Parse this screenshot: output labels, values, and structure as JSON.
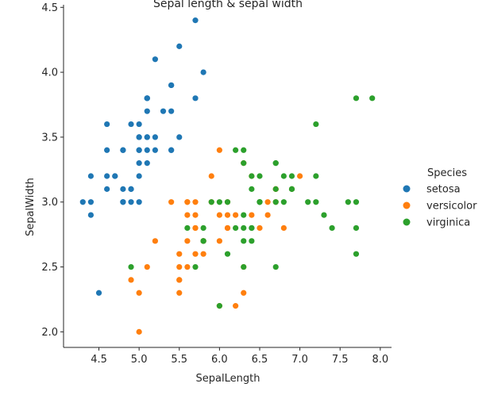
{
  "chart_data": {
    "type": "scatter",
    "title": "Sepal length & sepal width",
    "xlabel": "SepalLength",
    "ylabel": "SepalWidth",
    "xlim": [
      4.06,
      8.14
    ],
    "ylim": [
      1.88,
      4.52
    ],
    "xticks": [
      4.5,
      5.0,
      5.5,
      6.0,
      6.5,
      7.0,
      7.5,
      8.0
    ],
    "xtick_labels": [
      "4.5",
      "5.0",
      "5.5",
      "6.0",
      "6.5",
      "7.0",
      "7.5",
      "8.0"
    ],
    "yticks": [
      2.0,
      2.5,
      3.0,
      3.5,
      4.0,
      4.5
    ],
    "ytick_labels": [
      "2.0",
      "2.5",
      "3.0",
      "3.5",
      "4.0",
      "4.5"
    ],
    "grid": false,
    "legend": {
      "title": "Species",
      "placement": "right"
    },
    "series": [
      {
        "name": "setosa",
        "color": "#1f77b4",
        "points": [
          [
            5.1,
            3.5
          ],
          [
            4.9,
            3.0
          ],
          [
            4.7,
            3.2
          ],
          [
            4.6,
            3.1
          ],
          [
            5.0,
            3.6
          ],
          [
            5.4,
            3.9
          ],
          [
            4.6,
            3.4
          ],
          [
            5.0,
            3.4
          ],
          [
            4.4,
            2.9
          ],
          [
            4.9,
            3.1
          ],
          [
            5.4,
            3.7
          ],
          [
            4.8,
            3.4
          ],
          [
            4.8,
            3.0
          ],
          [
            4.3,
            3.0
          ],
          [
            5.8,
            4.0
          ],
          [
            5.7,
            4.4
          ],
          [
            5.4,
            3.9
          ],
          [
            5.1,
            3.5
          ],
          [
            5.7,
            3.8
          ],
          [
            5.1,
            3.8
          ],
          [
            5.4,
            3.4
          ],
          [
            5.1,
            3.7
          ],
          [
            4.6,
            3.6
          ],
          [
            5.1,
            3.3
          ],
          [
            4.8,
            3.4
          ],
          [
            5.0,
            3.0
          ],
          [
            5.0,
            3.4
          ],
          [
            5.2,
            3.5
          ],
          [
            5.2,
            3.4
          ],
          [
            4.7,
            3.2
          ],
          [
            4.8,
            3.1
          ],
          [
            5.4,
            3.4
          ],
          [
            5.2,
            4.1
          ],
          [
            5.5,
            4.2
          ],
          [
            4.9,
            3.1
          ],
          [
            5.0,
            3.2
          ],
          [
            5.5,
            3.5
          ],
          [
            4.9,
            3.6
          ],
          [
            4.4,
            3.0
          ],
          [
            5.1,
            3.4
          ],
          [
            5.0,
            3.5
          ],
          [
            4.5,
            2.3
          ],
          [
            4.4,
            3.2
          ],
          [
            5.0,
            3.5
          ],
          [
            5.1,
            3.8
          ],
          [
            4.8,
            3.0
          ],
          [
            5.1,
            3.8
          ],
          [
            4.6,
            3.2
          ],
          [
            5.3,
            3.7
          ],
          [
            5.0,
            3.3
          ]
        ]
      },
      {
        "name": "versicolor",
        "color": "#ff7f0e",
        "points": [
          [
            7.0,
            3.2
          ],
          [
            6.4,
            3.2
          ],
          [
            6.9,
            3.1
          ],
          [
            5.5,
            2.3
          ],
          [
            6.5,
            2.8
          ],
          [
            5.7,
            2.8
          ],
          [
            6.3,
            3.3
          ],
          [
            4.9,
            2.4
          ],
          [
            6.6,
            2.9
          ],
          [
            5.2,
            2.7
          ],
          [
            5.0,
            2.0
          ],
          [
            5.9,
            3.0
          ],
          [
            6.0,
            2.2
          ],
          [
            6.1,
            2.9
          ],
          [
            5.6,
            2.9
          ],
          [
            6.7,
            3.1
          ],
          [
            5.6,
            3.0
          ],
          [
            5.8,
            2.7
          ],
          [
            6.2,
            2.2
          ],
          [
            5.6,
            2.5
          ],
          [
            5.9,
            3.2
          ],
          [
            6.1,
            2.8
          ],
          [
            6.3,
            2.5
          ],
          [
            6.1,
            2.8
          ],
          [
            6.4,
            2.9
          ],
          [
            6.6,
            3.0
          ],
          [
            6.8,
            2.8
          ],
          [
            6.7,
            3.0
          ],
          [
            6.0,
            2.9
          ],
          [
            5.7,
            2.6
          ],
          [
            5.5,
            2.4
          ],
          [
            5.5,
            2.4
          ],
          [
            5.8,
            2.7
          ],
          [
            6.0,
            2.7
          ],
          [
            5.4,
            3.0
          ],
          [
            6.0,
            3.4
          ],
          [
            6.7,
            3.1
          ],
          [
            6.3,
            2.3
          ],
          [
            5.6,
            3.0
          ],
          [
            5.5,
            2.5
          ],
          [
            5.5,
            2.6
          ],
          [
            6.1,
            3.0
          ],
          [
            5.8,
            2.6
          ],
          [
            5.0,
            2.3
          ],
          [
            5.6,
            2.7
          ],
          [
            5.7,
            3.0
          ],
          [
            5.7,
            2.9
          ],
          [
            6.2,
            2.9
          ],
          [
            5.1,
            2.5
          ],
          [
            5.7,
            2.8
          ]
        ]
      },
      {
        "name": "virginica",
        "color": "#2ca02c",
        "points": [
          [
            6.3,
            3.3
          ],
          [
            5.8,
            2.7
          ],
          [
            7.1,
            3.0
          ],
          [
            6.3,
            2.9
          ],
          [
            6.5,
            3.0
          ],
          [
            7.6,
            3.0
          ],
          [
            4.9,
            2.5
          ],
          [
            7.3,
            2.9
          ],
          [
            6.7,
            2.5
          ],
          [
            7.2,
            3.6
          ],
          [
            6.5,
            3.2
          ],
          [
            6.4,
            2.7
          ],
          [
            6.8,
            3.0
          ],
          [
            5.7,
            2.5
          ],
          [
            5.8,
            2.8
          ],
          [
            6.4,
            3.2
          ],
          [
            6.5,
            3.0
          ],
          [
            7.7,
            3.8
          ],
          [
            7.7,
            2.6
          ],
          [
            6.0,
            2.2
          ],
          [
            6.9,
            3.2
          ],
          [
            5.6,
            2.8
          ],
          [
            7.7,
            2.8
          ],
          [
            6.3,
            2.7
          ],
          [
            6.7,
            3.3
          ],
          [
            7.2,
            3.2
          ],
          [
            6.2,
            2.8
          ],
          [
            6.1,
            3.0
          ],
          [
            6.4,
            2.8
          ],
          [
            7.2,
            3.0
          ],
          [
            7.4,
            2.8
          ],
          [
            7.9,
            3.8
          ],
          [
            6.4,
            2.8
          ],
          [
            6.3,
            2.8
          ],
          [
            6.1,
            2.6
          ],
          [
            7.7,
            3.0
          ],
          [
            6.3,
            3.4
          ],
          [
            6.4,
            3.1
          ],
          [
            6.0,
            3.0
          ],
          [
            6.9,
            3.1
          ],
          [
            6.7,
            3.1
          ],
          [
            6.9,
            3.1
          ],
          [
            5.8,
            2.7
          ],
          [
            6.8,
            3.2
          ],
          [
            6.7,
            3.3
          ],
          [
            6.7,
            3.0
          ],
          [
            6.3,
            2.5
          ],
          [
            6.5,
            3.0
          ],
          [
            6.2,
            3.4
          ],
          [
            5.9,
            3.0
          ]
        ]
      }
    ]
  }
}
